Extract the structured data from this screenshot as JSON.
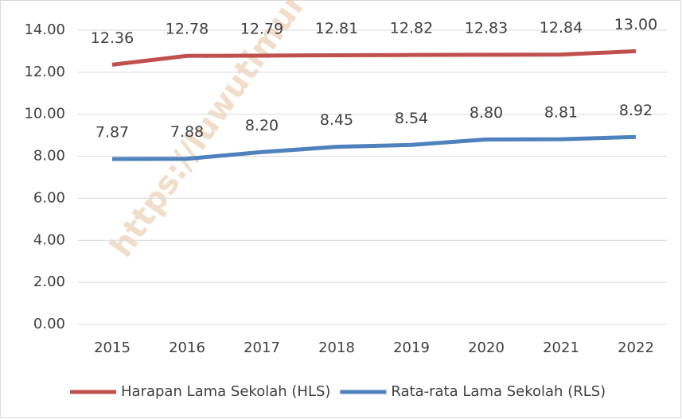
{
  "chart_data": {
    "type": "line",
    "categories": [
      "2015",
      "2016",
      "2017",
      "2018",
      "2019",
      "2020",
      "2021",
      "2022"
    ],
    "series": [
      {
        "name": "Harapan Lama Sekolah (HLS)",
        "color": "#c0504d",
        "values": [
          12.36,
          12.78,
          12.79,
          12.81,
          12.82,
          12.83,
          12.84,
          13.0
        ],
        "value_labels": [
          "12.36",
          "12.78",
          "12.79",
          "12.81",
          "12.82",
          "12.83",
          "12.84",
          "13.00"
        ]
      },
      {
        "name": "Rata-rata Lama Sekolah (RLS)",
        "color": "#4f81bd",
        "values": [
          7.87,
          7.88,
          8.2,
          8.45,
          8.54,
          8.8,
          8.81,
          8.92
        ],
        "value_labels": [
          "7.87",
          "7.88",
          "8.20",
          "8.45",
          "8.54",
          "8.80",
          "8.81",
          "8.92"
        ]
      }
    ],
    "ylim": [
      0,
      14
    ],
    "yticks": [
      {
        "value": 0,
        "label": "0.00"
      },
      {
        "value": 2,
        "label": "2.00"
      },
      {
        "value": 4,
        "label": "4.00"
      },
      {
        "value": 6,
        "label": "6.00"
      },
      {
        "value": 8,
        "label": "8.00"
      },
      {
        "value": 10,
        "label": "10.00"
      },
      {
        "value": 12,
        "label": "12.00"
      },
      {
        "value": 14,
        "label": "14.00"
      }
    ],
    "grid": true,
    "legend": "bottom",
    "watermark": "https://luwutimurka"
  }
}
